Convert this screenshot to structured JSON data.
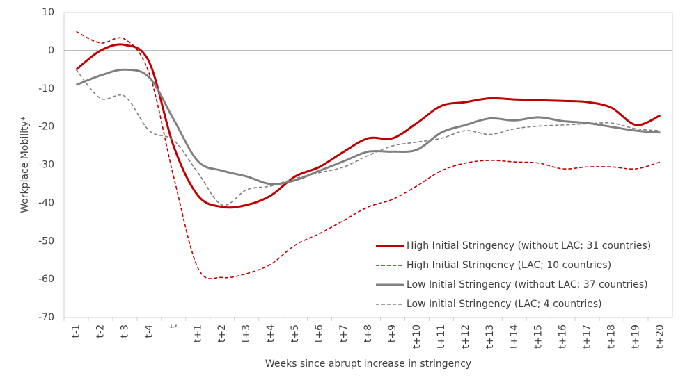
{
  "chart_data": {
    "type": "line",
    "y_label": "Workplace Mobility*",
    "x_label": "Weeks since abrupt increase in stringency",
    "categories": [
      "t-1",
      "t-2",
      "t-3",
      "t-4",
      "t",
      "t+1",
      "t+2",
      "t+3",
      "t+4",
      "t+5",
      "t+6",
      "t+7",
      "t+8",
      "t+9",
      "t+10",
      "t+11",
      "t+12",
      "t+13",
      "t+14",
      "t+15",
      "t+16",
      "t+17",
      "t+18",
      "t+19",
      "t+20"
    ],
    "series": [
      {
        "name": "High Initial Stringency (without LAC; 31 countries)",
        "color": "#c00000",
        "style": "solid",
        "values": [
          -5,
          0,
          1.5,
          -3,
          -25,
          -38,
          -41,
          -40.5,
          -38,
          -33,
          -30.5,
          -26.5,
          -23,
          -23,
          -19,
          -14.5,
          -13.5,
          -12.5,
          -12.8,
          -13,
          -13.2,
          -13.5,
          -15,
          -19.5,
          -17
        ]
      },
      {
        "name": "High Initial Stringency (LAC; 10 countries)",
        "color": "#c00000",
        "style": "dashed",
        "values": [
          5,
          2,
          3,
          -6,
          -33,
          -57,
          -59.5,
          -58.5,
          -56,
          -51,
          -48,
          -44.5,
          -41,
          -39,
          -35.5,
          -31.5,
          -29.5,
          -28.8,
          -29.2,
          -29.5,
          -31,
          -30.5,
          -30.5,
          -31,
          -29.2
        ]
      },
      {
        "name": "Low Initial Stringency (without LAC; 37 countries)",
        "color": "#808080",
        "style": "solid",
        "values": [
          -9,
          -6.5,
          -5,
          -7,
          -18,
          -29,
          -31.5,
          -33,
          -35,
          -34,
          -31.5,
          -29,
          -26.5,
          -26.5,
          -26,
          -21.5,
          -19.5,
          -17.8,
          -18.3,
          -17.5,
          -18.5,
          -19,
          -20,
          -21,
          -21.5
        ]
      },
      {
        "name": "Low Initial Stringency (LAC; 4 countries)",
        "color": "#808080",
        "style": "dashed",
        "values": [
          -5,
          -12.5,
          -12,
          -21,
          -23.5,
          -32,
          -40.5,
          -36.5,
          -35.5,
          -33.5,
          -32,
          -30.5,
          -27.5,
          -25,
          -24,
          -23,
          -21,
          -22,
          -20.5,
          -19.8,
          -19.5,
          -19.2,
          -19,
          -20.5,
          -21
        ]
      }
    ],
    "ylim": [
      -70,
      10
    ],
    "yticks": [
      -70,
      -60,
      -50,
      -40,
      -30,
      -20,
      -10,
      0,
      10
    ],
    "zero_line": true,
    "legend": "lower right"
  }
}
